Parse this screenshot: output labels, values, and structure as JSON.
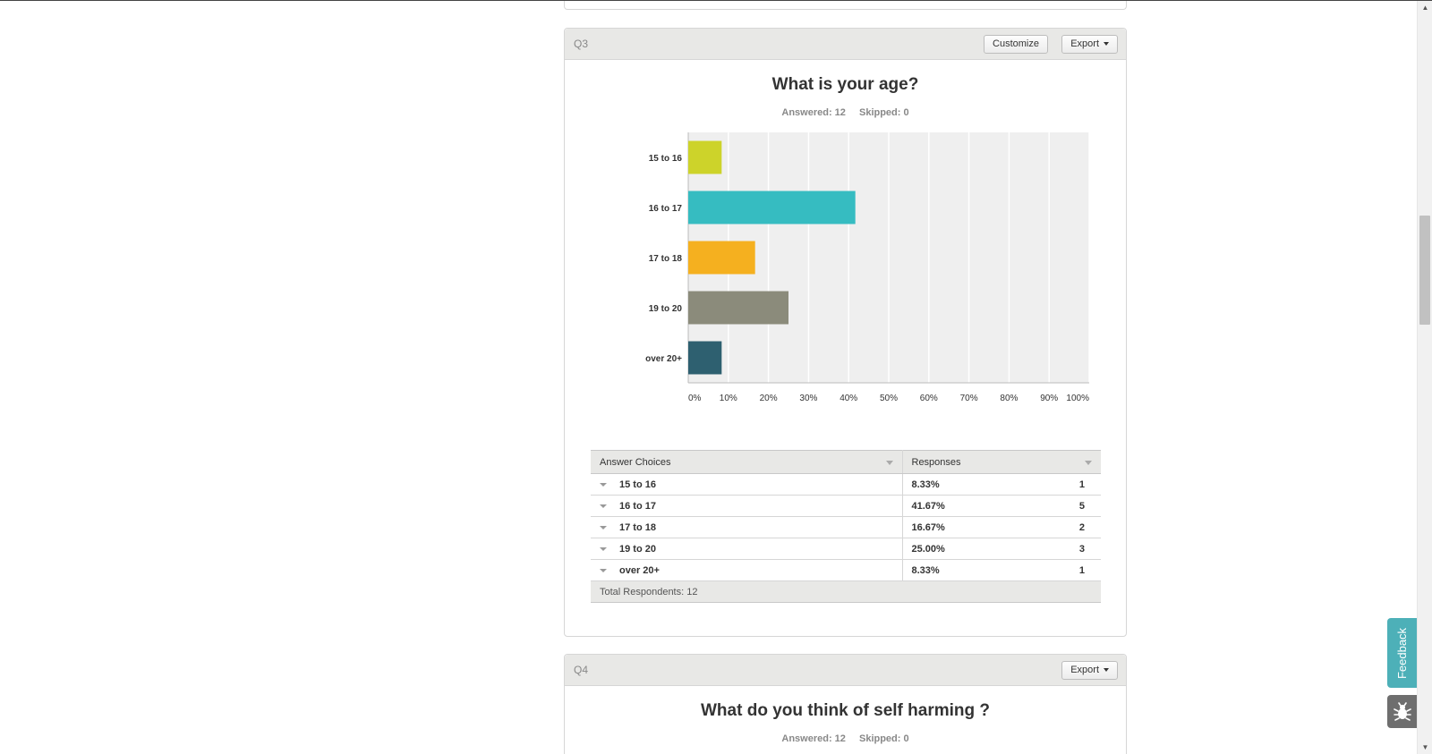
{
  "q3": {
    "number": "Q3",
    "customize_label": "Customize",
    "export_label": "Export",
    "title": "What is your age?",
    "answered": "Answered: 12",
    "skipped": "Skipped: 0",
    "table": {
      "col_choices": "Answer Choices",
      "col_responses": "Responses",
      "rows": [
        {
          "choice": "15 to 16",
          "pct": "8.33%",
          "count": "1"
        },
        {
          "choice": "16 to 17",
          "pct": "41.67%",
          "count": "5"
        },
        {
          "choice": "17 to 18",
          "pct": "16.67%",
          "count": "2"
        },
        {
          "choice": "19 to 20",
          "pct": "25.00%",
          "count": "3"
        },
        {
          "choice": "over 20+",
          "pct": "8.33%",
          "count": "1"
        }
      ],
      "total": "Total Respondents: 12"
    }
  },
  "chart_data": {
    "type": "bar",
    "orientation": "horizontal",
    "categories": [
      "15 to 16",
      "16 to 17",
      "17 to 18",
      "19 to 20",
      "over 20+"
    ],
    "values": [
      8.33,
      41.67,
      16.67,
      25.0,
      8.33
    ],
    "colors": [
      "#cdd32a",
      "#36bcc1",
      "#f5b01f",
      "#8b8b7b",
      "#2e6070"
    ],
    "xticks": [
      "0%",
      "10%",
      "20%",
      "30%",
      "40%",
      "50%",
      "60%",
      "70%",
      "80%",
      "90%",
      "100%"
    ],
    "xlim": [
      0,
      100
    ],
    "grid": true
  },
  "q4": {
    "number": "Q4",
    "export_label": "Export",
    "title": "What do you think of self harming ?",
    "answered": "Answered: 12",
    "skipped": "Skipped: 0"
  },
  "widgets": {
    "feedback_label": "Feedback",
    "bug_icon": "bug-icon"
  }
}
